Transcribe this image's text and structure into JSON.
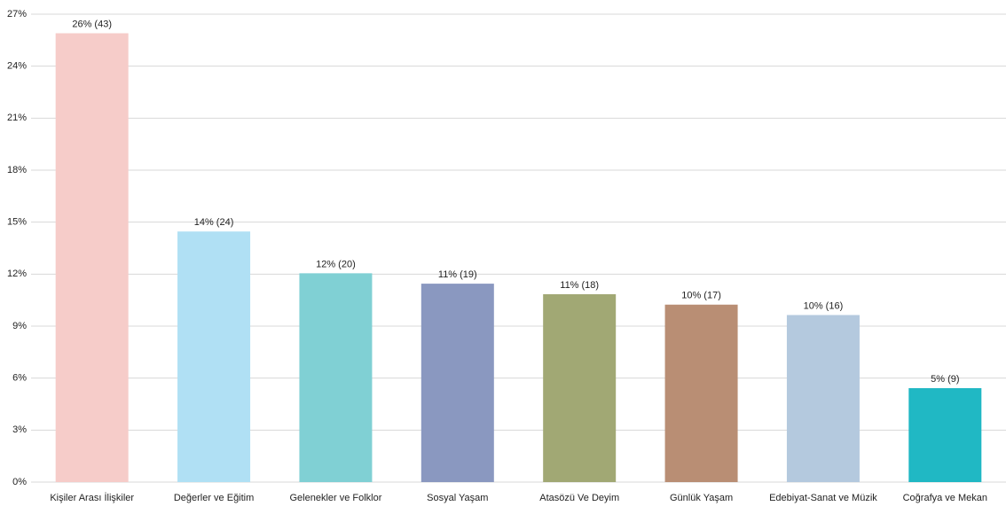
{
  "chart_data": {
    "type": "bar",
    "categories": [
      "Kişiler Arası İlişkiler",
      "Değerler ve Eğitim",
      "Gelenekler ve Folklor",
      "Sosyal Yaşam",
      "Atasözü Ve Deyim",
      "Günlük Yaşam",
      "Edebiyat-Sanat ve Müzik",
      "Coğrafya ve Mekan"
    ],
    "values": [
      25.9,
      14.46,
      12.05,
      11.45,
      10.84,
      10.24,
      9.64,
      5.42
    ],
    "value_labels": [
      "26% (43)",
      "14% (24)",
      "12% (20)",
      "11% (19)",
      "11% (18)",
      "10% (17)",
      "10% (16)",
      "5% (9)"
    ],
    "colors": [
      "#f6ccc9",
      "#b0e0f4",
      "#80d0d4",
      "#8a98c0",
      "#a1a874",
      "#b98e74",
      "#b4c9de",
      "#20b8c4"
    ],
    "ylim": [
      0,
      27
    ],
    "yticks": [
      {
        "value": 0,
        "label": "0%"
      },
      {
        "value": 3,
        "label": "3%"
      },
      {
        "value": 6,
        "label": "6%"
      },
      {
        "value": 9,
        "label": "9%"
      },
      {
        "value": 12,
        "label": "12%"
      },
      {
        "value": 15,
        "label": "15%"
      },
      {
        "value": 18,
        "label": "18%"
      },
      {
        "value": 21,
        "label": "21%"
      },
      {
        "value": 24,
        "label": "24%"
      },
      {
        "value": 27,
        "label": "27%"
      }
    ],
    "grid": true
  }
}
